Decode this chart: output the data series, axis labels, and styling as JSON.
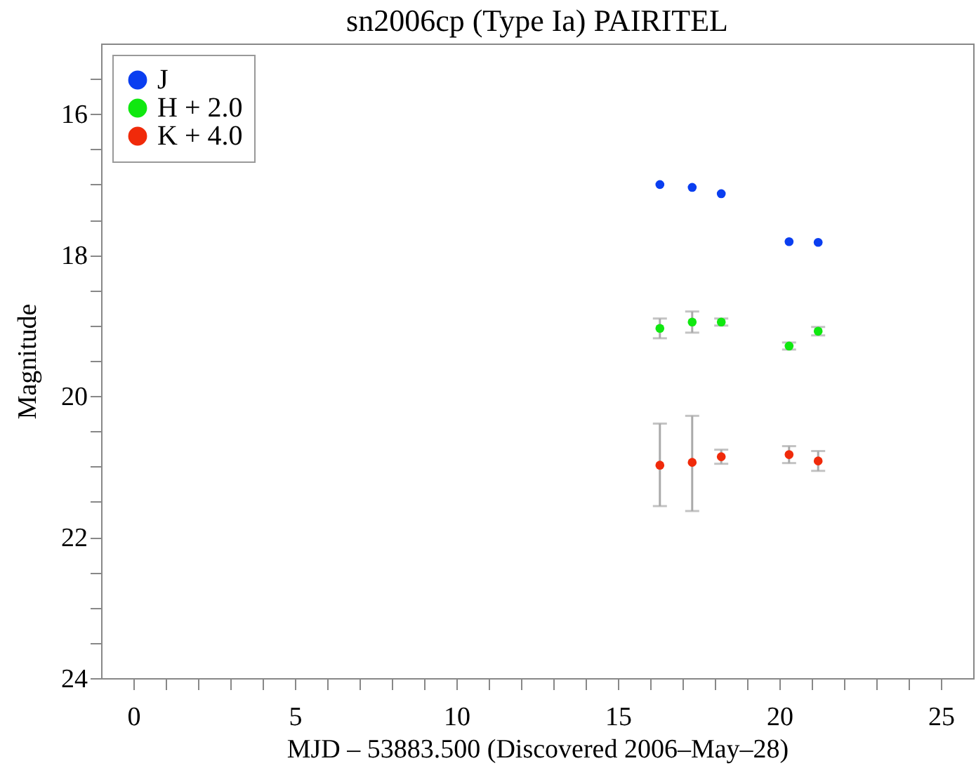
{
  "chart_data": {
    "type": "scatter",
    "title": "sn2006cp (Type Ia) PAIRITEL",
    "xlabel": "MJD – 53883.500 (Discovered 2006–May–28)",
    "ylabel": "Magnitude",
    "x": [
      16.3,
      17.3,
      18.2,
      20.3,
      21.2
    ],
    "series": [
      {
        "name": "J",
        "color": "#0a3ef0",
        "values": [
          17.0,
          17.04,
          17.13,
          17.81,
          17.82
        ]
      },
      {
        "name": "H + 2.0",
        "color": "#10e810",
        "values": [
          19.04,
          18.95,
          18.95,
          19.29,
          19.08
        ],
        "errors": [
          0.14,
          0.15,
          0.05,
          0.05,
          0.06
        ]
      },
      {
        "name": "K + 4.0",
        "color": "#f02a0a",
        "values": [
          20.98,
          20.94,
          20.86,
          20.83,
          20.92
        ],
        "errors": [
          [
            20.39,
            21.56
          ],
          [
            20.28,
            21.63
          ],
          0.1,
          0.12,
          0.14
        ]
      }
    ],
    "xlim": [
      -1,
      26
    ],
    "ylim": [
      24,
      15
    ],
    "xticks": [
      0,
      {
        "value": 1,
        "label": null
      },
      {
        "value": 2,
        "label": null
      },
      {
        "value": 3,
        "label": null
      },
      {
        "value": 4,
        "label": null
      },
      5,
      {
        "value": 6,
        "label": null
      },
      {
        "value": 7,
        "label": null
      },
      {
        "value": 8,
        "label": null
      },
      {
        "value": 9,
        "label": null
      },
      10,
      {
        "value": 11,
        "label": null
      },
      {
        "value": 12,
        "label": null
      },
      {
        "value": 13,
        "label": null
      },
      {
        "value": 14,
        "label": null
      },
      15,
      {
        "value": 16,
        "label": null
      },
      {
        "value": 17,
        "label": null
      },
      {
        "value": 18,
        "label": null
      },
      {
        "value": 19,
        "label": null
      },
      20,
      {
        "value": 21,
        "label": null
      },
      {
        "value": 22,
        "label": null
      },
      {
        "value": 23,
        "label": null
      },
      {
        "value": 24,
        "label": null
      },
      25
    ],
    "yticks": [
      {
        "value": 15.5,
        "label": null
      },
      16,
      {
        "value": 16.5,
        "label": null
      },
      {
        "value": 17,
        "label": null
      },
      {
        "value": 17.5,
        "label": null
      },
      18,
      {
        "value": 18.5,
        "label": null
      },
      {
        "value": 19,
        "label": null
      },
      {
        "value": 19.5,
        "label": null
      },
      20,
      {
        "value": 20.5,
        "label": null
      },
      {
        "value": 21,
        "label": null
      },
      {
        "value": 21.5,
        "label": null
      },
      22,
      {
        "value": 22.5,
        "label": null
      },
      {
        "value": 23,
        "label": null
      },
      {
        "value": 23.5,
        "label": null
      },
      24
    ],
    "legend": "top left",
    "marker": "circle"
  }
}
